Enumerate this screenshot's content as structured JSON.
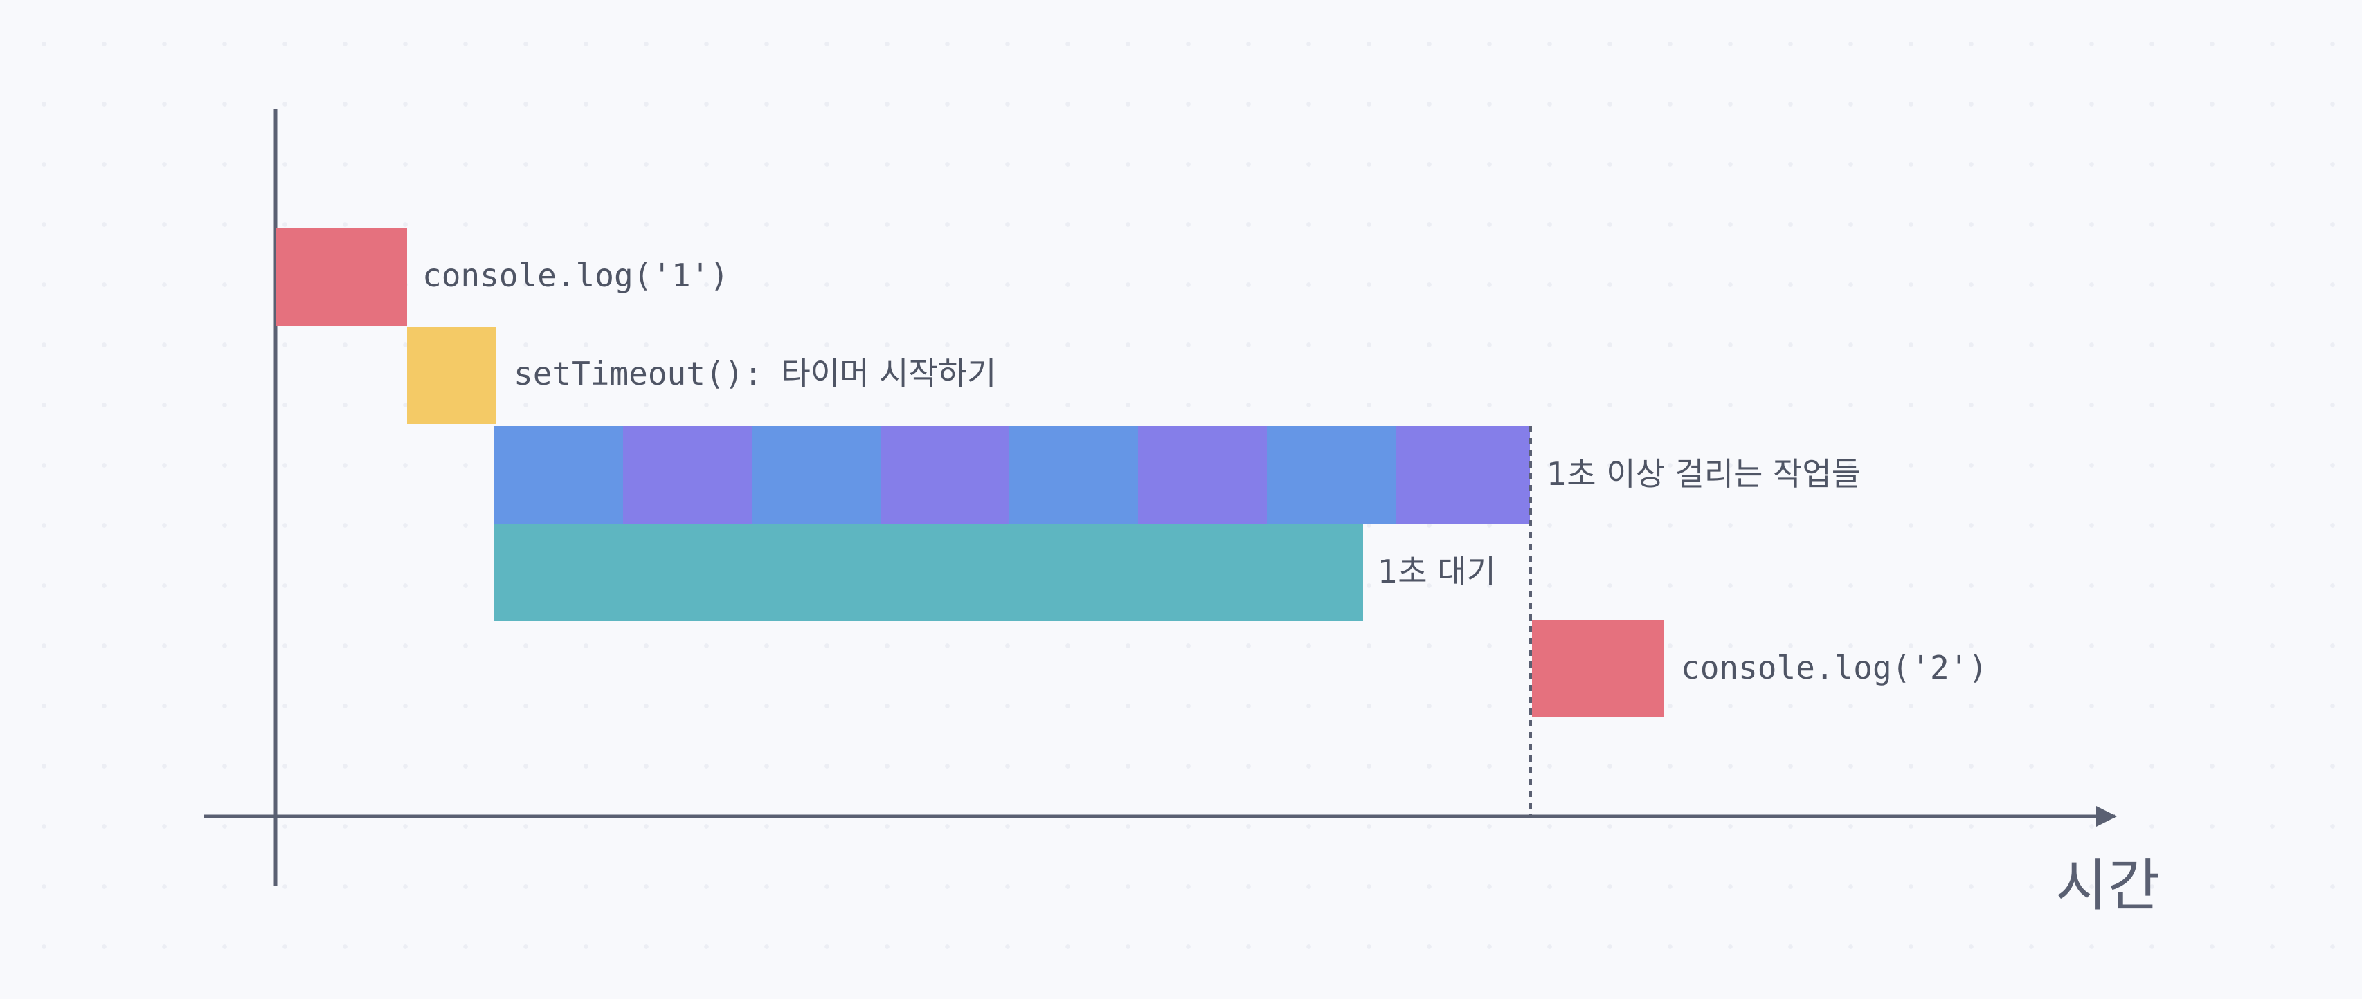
{
  "colors": {
    "background": "#f8f9fc",
    "axis": "#5a6072",
    "text": "#4f5565",
    "red": "#e5717e",
    "yellow": "#f4ca66",
    "blue": "#6596e6",
    "purple": "#857ee9",
    "teal": "#5eb6c1"
  },
  "axis": {
    "x_label": "시간"
  },
  "tasks": {
    "log1": {
      "code": "console.log('1')"
    },
    "timeout": {
      "code": "setTimeout():",
      "note": "타이머 시작하기"
    },
    "long_work": {
      "label": "1초 이상 걸리는 작업들",
      "segments": 8
    },
    "wait": {
      "label": "1초 대기"
    },
    "log2": {
      "code": "console.log('2')"
    }
  }
}
